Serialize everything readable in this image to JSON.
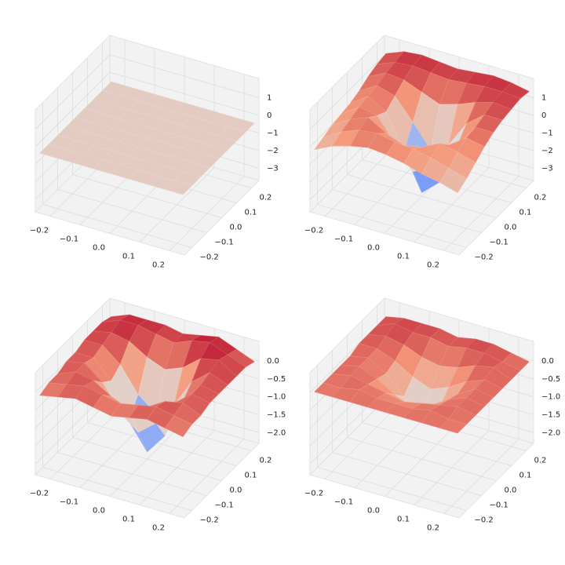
{
  "chart_data": [
    {
      "type": "surface",
      "cmap": "coolwarm",
      "x": [
        -0.24,
        -0.18,
        -0.12,
        -0.06,
        0,
        0.06,
        0.12,
        0.18,
        0.24
      ],
      "y": [
        -0.24,
        -0.18,
        -0.12,
        -0.06,
        0,
        0.06,
        0.12,
        0.18,
        0.24
      ],
      "z": [
        [
          -0.4,
          -0.4,
          -0.4,
          -0.4,
          -0.4,
          -0.4,
          -0.4,
          -0.4,
          -0.4
        ],
        [
          -0.4,
          -0.4,
          -0.4,
          -0.4,
          -0.4,
          -0.4,
          -0.4,
          -0.4,
          -0.4
        ],
        [
          -0.4,
          -0.4,
          -0.4,
          -0.4,
          -0.4,
          -0.4,
          -0.4,
          -0.4,
          -0.4
        ],
        [
          -0.4,
          -0.4,
          -0.4,
          -0.4,
          -0.4,
          -0.4,
          -0.4,
          -0.4,
          -0.4
        ],
        [
          -0.4,
          -0.4,
          -0.4,
          -0.4,
          -0.4,
          -0.4,
          -0.4,
          -0.4,
          -0.4
        ],
        [
          -0.4,
          -0.4,
          -0.4,
          -0.4,
          -0.4,
          -0.4,
          -0.4,
          -0.4,
          -0.4
        ],
        [
          -0.4,
          -0.4,
          -0.4,
          -0.4,
          -0.4,
          -0.4,
          -0.4,
          -0.4,
          -0.4
        ],
        [
          -0.4,
          -0.4,
          -0.4,
          -0.4,
          -0.4,
          -0.4,
          -0.4,
          -0.4,
          -0.4
        ],
        [
          -0.4,
          -0.4,
          -0.4,
          -0.4,
          -0.4,
          -0.4,
          -0.4,
          -0.4,
          -0.4
        ]
      ],
      "xlim": [
        -0.25,
        0.25
      ],
      "ylim": [
        -0.25,
        0.25
      ],
      "zlim": [
        -3.7,
        2.1
      ],
      "xticks": [
        {
          "value": -0.2,
          "label": "−0.2"
        },
        {
          "value": -0.1,
          "label": "−0.1"
        },
        {
          "value": 0,
          "label": "0.0"
        },
        {
          "value": 0.1,
          "label": "0.1"
        },
        {
          "value": 0.2,
          "label": "0.2"
        }
      ],
      "yticks": [
        {
          "value": -0.2,
          "label": "−0.2"
        },
        {
          "value": -0.1,
          "label": "−0.1"
        },
        {
          "value": 0,
          "label": "0.0"
        },
        {
          "value": 0.1,
          "label": "0.1"
        },
        {
          "value": 0.2,
          "label": "0.2"
        }
      ],
      "zticks": [
        {
          "value": -3,
          "label": "−3"
        },
        {
          "value": -2,
          "label": "−2"
        },
        {
          "value": -1,
          "label": "−1"
        },
        0,
        1
      ]
    },
    {
      "type": "surface",
      "cmap": "coolwarm",
      "x": [
        -0.24,
        -0.18,
        -0.12,
        -0.06,
        0,
        0.06,
        0.12,
        0.18,
        0.24
      ],
      "y": [
        -0.24,
        -0.18,
        -0.12,
        -0.06,
        0,
        0.06,
        0.12,
        0.18,
        0.24
      ],
      "z": [
        [
          -0.2,
          0.3,
          0.6,
          0.8,
          0.7,
          0.5,
          0.2,
          0.0,
          -0.3
        ],
        [
          0.0,
          0.6,
          1.0,
          1.1,
          0.9,
          0.8,
          0.6,
          0.3,
          0.0
        ],
        [
          0.2,
          0.8,
          1.2,
          0.6,
          0.2,
          0.4,
          0.9,
          0.7,
          0.4
        ],
        [
          0.3,
          1.0,
          0.8,
          -0.5,
          -1.8,
          -1.2,
          0.3,
          1.0,
          0.8
        ],
        [
          0.4,
          1.1,
          0.5,
          -1.5,
          -3.5,
          -2.6,
          -0.2,
          1.1,
          1.1
        ],
        [
          0.6,
          1.2,
          0.9,
          -0.3,
          -1.6,
          -1.0,
          0.5,
          1.3,
          1.3
        ],
        [
          0.9,
          1.4,
          1.3,
          0.9,
          0.5,
          0.8,
          1.2,
          1.5,
          1.4
        ],
        [
          1.1,
          1.5,
          1.6,
          1.5,
          1.4,
          1.5,
          1.6,
          1.6,
          1.5
        ],
        [
          1.2,
          1.6,
          1.7,
          1.6,
          1.5,
          1.6,
          1.7,
          1.6,
          1.4
        ]
      ],
      "xlim": [
        -0.25,
        0.25
      ],
      "ylim": [
        -0.25,
        0.25
      ],
      "zlim": [
        -3.7,
        2.1
      ],
      "xticks": [
        {
          "value": -0.2,
          "label": "−0.2"
        },
        {
          "value": -0.1,
          "label": "−0.1"
        },
        {
          "value": 0,
          "label": "0.0"
        },
        {
          "value": 0.1,
          "label": "0.1"
        },
        {
          "value": 0.2,
          "label": "0.2"
        }
      ],
      "yticks": [
        {
          "value": -0.2,
          "label": "−0.2"
        },
        {
          "value": -0.1,
          "label": "−0.1"
        },
        {
          "value": 0,
          "label": "0.0"
        },
        {
          "value": 0.1,
          "label": "0.1"
        },
        {
          "value": 0.2,
          "label": "0.2"
        }
      ],
      "zticks": [
        {
          "value": -3,
          "label": "−3"
        },
        {
          "value": -2,
          "label": "−2"
        },
        {
          "value": -1,
          "label": "−1"
        },
        0,
        1
      ]
    },
    {
      "type": "surface",
      "cmap": "coolwarm",
      "x": [
        -0.24,
        -0.18,
        -0.12,
        -0.06,
        0,
        0.06,
        0.12,
        0.18,
        0.24
      ],
      "y": [
        -0.24,
        -0.18,
        -0.12,
        -0.06,
        0,
        0.06,
        0.12,
        0.18,
        0.24
      ],
      "z": [
        [
          -0.1,
          0.0,
          0.1,
          0.0,
          -0.1,
          0.0,
          0.1,
          0.0,
          -0.1
        ],
        [
          0.0,
          0.1,
          0.2,
          0.1,
          0.0,
          0.1,
          0.2,
          0.1,
          0.0
        ],
        [
          0.0,
          0.2,
          0.1,
          -0.2,
          -0.4,
          -0.2,
          0.1,
          0.2,
          0.0
        ],
        [
          0.1,
          0.2,
          -0.2,
          -0.9,
          -1.3,
          -0.9,
          -0.2,
          0.2,
          0.1
        ],
        [
          0.1,
          0.1,
          -0.4,
          -1.4,
          -2.1,
          -1.5,
          -0.4,
          0.2,
          0.1
        ],
        [
          0.2,
          0.2,
          -0.2,
          -0.9,
          -1.3,
          -0.9,
          -0.1,
          0.3,
          0.1
        ],
        [
          0.2,
          0.3,
          0.2,
          -0.1,
          -0.3,
          -0.1,
          0.3,
          0.4,
          0.1
        ],
        [
          0.2,
          0.4,
          0.4,
          0.3,
          0.2,
          0.4,
          0.5,
          0.3,
          0.1
        ],
        [
          0.1,
          0.3,
          0.3,
          0.3,
          0.2,
          0.3,
          0.4,
          0.2,
          0.0
        ]
      ],
      "xlim": [
        -0.25,
        0.25
      ],
      "ylim": [
        -0.25,
        0.25
      ],
      "zlim": [
        -2.3,
        0.55
      ],
      "xticks": [
        {
          "value": -0.2,
          "label": "−0.2"
        },
        {
          "value": -0.1,
          "label": "−0.1"
        },
        {
          "value": 0,
          "label": "0.0"
        },
        {
          "value": 0.1,
          "label": "0.1"
        },
        {
          "value": 0.2,
          "label": "0.2"
        }
      ],
      "yticks": [
        {
          "value": -0.2,
          "label": "−0.2"
        },
        {
          "value": -0.1,
          "label": "−0.1"
        },
        {
          "value": 0,
          "label": "0.0"
        },
        {
          "value": 0.1,
          "label": "0.1"
        },
        {
          "value": 0.2,
          "label": "0.2"
        }
      ],
      "zticks": [
        {
          "value": -2,
          "label": "−2.0"
        },
        {
          "value": -1.5,
          "label": "−1.5"
        },
        {
          "value": -1,
          "label": "−1.0"
        },
        {
          "value": -0.5,
          "label": "−0.5"
        },
        {
          "value": 0,
          "label": "0.0"
        }
      ]
    },
    {
      "type": "surface",
      "cmap": "coolwarm",
      "x": [
        -0.24,
        -0.18,
        -0.12,
        -0.06,
        0,
        0.06,
        0.12,
        0.18,
        0.24
      ],
      "y": [
        -0.24,
        -0.18,
        -0.12,
        -0.06,
        0,
        0.06,
        0.12,
        0.18,
        0.24
      ],
      "z": [
        [
          0.0,
          0.0,
          0.0,
          0.0,
          0.0,
          0.0,
          0.0,
          0.0,
          0.0
        ],
        [
          0.0,
          0.0,
          0.1,
          0.0,
          0.0,
          0.0,
          0.1,
          0.0,
          0.0
        ],
        [
          0.0,
          0.1,
          0.0,
          -0.1,
          -0.2,
          -0.1,
          0.0,
          0.1,
          0.0
        ],
        [
          0.0,
          0.1,
          -0.1,
          -0.4,
          -0.6,
          -0.4,
          -0.1,
          0.1,
          0.0
        ],
        [
          0.0,
          0.1,
          -0.2,
          -0.7,
          -1.1,
          -0.7,
          -0.2,
          0.1,
          0.0
        ],
        [
          0.1,
          0.1,
          -0.1,
          -0.4,
          -0.6,
          -0.4,
          -0.1,
          0.1,
          0.0
        ],
        [
          0.1,
          0.2,
          0.1,
          -0.1,
          -0.2,
          -0.1,
          0.1,
          0.2,
          0.0
        ],
        [
          0.1,
          0.3,
          0.2,
          0.2,
          0.1,
          0.2,
          0.2,
          0.1,
          0.0
        ],
        [
          0.1,
          0.2,
          0.2,
          0.2,
          0.1,
          0.2,
          0.2,
          0.1,
          0.0
        ]
      ],
      "xlim": [
        -0.25,
        0.25
      ],
      "ylim": [
        -0.25,
        0.25
      ],
      "zlim": [
        -2.3,
        0.55
      ],
      "xticks": [
        {
          "value": -0.2,
          "label": "−0.2"
        },
        {
          "value": -0.1,
          "label": "−0.1"
        },
        {
          "value": 0,
          "label": "0.0"
        },
        {
          "value": 0.1,
          "label": "0.1"
        },
        {
          "value": 0.2,
          "label": "0.2"
        }
      ],
      "yticks": [
        {
          "value": -0.2,
          "label": "−0.2"
        },
        {
          "value": -0.1,
          "label": "−0.1"
        },
        {
          "value": 0,
          "label": "0.0"
        },
        {
          "value": 0.1,
          "label": "0.1"
        },
        {
          "value": 0.2,
          "label": "0.2"
        }
      ],
      "zticks": [
        {
          "value": -2,
          "label": "−2.0"
        },
        {
          "value": -1.5,
          "label": "−1.5"
        },
        {
          "value": -1,
          "label": "−1.0"
        },
        {
          "value": -0.5,
          "label": "−0.5"
        },
        {
          "value": 0,
          "label": "0.0"
        }
      ]
    }
  ]
}
